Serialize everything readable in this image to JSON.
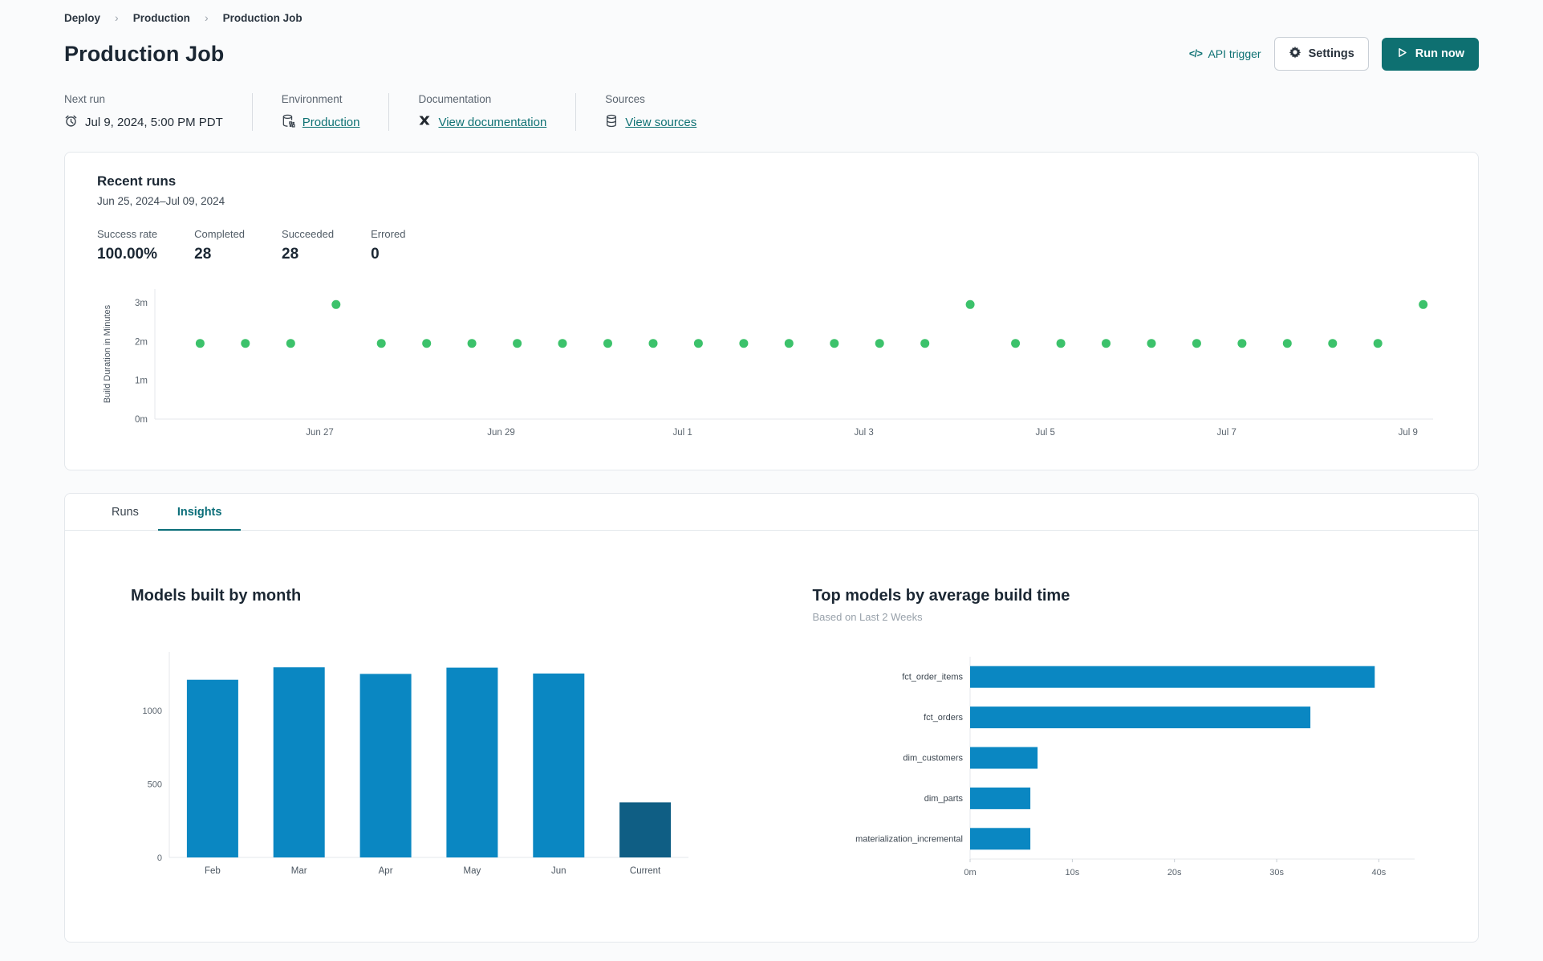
{
  "breadcrumb": {
    "items": [
      "Deploy",
      "Production",
      "Production Job"
    ]
  },
  "header": {
    "title": "Production Job",
    "api_trigger_icon": "</>",
    "api_trigger_label": "API trigger",
    "settings_label": "Settings",
    "run_now_label": "Run now"
  },
  "meta": {
    "next_run": {
      "label": "Next run",
      "value": "Jul 9, 2024, 5:00 PM PDT"
    },
    "environment": {
      "label": "Environment",
      "value": "Production"
    },
    "documentation": {
      "label": "Documentation",
      "value": "View documentation"
    },
    "sources": {
      "label": "Sources",
      "value": "View sources"
    }
  },
  "recent_runs": {
    "title": "Recent runs",
    "date_range": "Jun 25, 2024–Jul 09, 2024",
    "stats": [
      {
        "label": "Success rate",
        "value": "100.00%"
      },
      {
        "label": "Completed",
        "value": "28"
      },
      {
        "label": "Succeeded",
        "value": "28"
      },
      {
        "label": "Errored",
        "value": "0"
      }
    ]
  },
  "tabs": [
    {
      "label": "Runs",
      "active": false
    },
    {
      "label": "Insights",
      "active": true
    }
  ],
  "colors": {
    "accent_teal": "#0e7071",
    "link_teal": "#0e7173",
    "tab_teal": "#0b6e79",
    "dot_green": "#3cc26b",
    "bar_blue": "#0a87c2",
    "bar_dark_blue": "#0f5e84",
    "card_border": "#e4e8ec"
  },
  "chart_data": [
    {
      "type": "scatter",
      "ylabel": "Build Duration in Minutes",
      "ylim": [
        0,
        3.35
      ],
      "yticks": [
        {
          "v": 0,
          "label": "0m"
        },
        {
          "v": 1,
          "label": "1m"
        },
        {
          "v": 2,
          "label": "2m"
        },
        {
          "v": 3,
          "label": "3m"
        }
      ],
      "xticks": [
        "Jun 27",
        "Jun 29",
        "Jul 1",
        "Jul 3",
        "Jul 5",
        "Jul 7",
        "Jul 9"
      ],
      "xtick_start_frac": 0.129,
      "xtick_step_frac": 0.1419,
      "point_start_frac": 0.0354,
      "point_step_frac": 0.03544,
      "point_color": "#3cc26b",
      "values": [
        1.95,
        1.95,
        1.95,
        2.95,
        1.95,
        1.95,
        1.95,
        1.95,
        1.95,
        1.95,
        1.95,
        1.95,
        1.95,
        1.95,
        1.95,
        1.95,
        1.95,
        2.95,
        1.95,
        1.95,
        1.95,
        1.95,
        1.95,
        1.95,
        1.95,
        1.95,
        1.95,
        2.95
      ],
      "grid": false,
      "legend": "none"
    },
    {
      "type": "bar",
      "title": "Models built by month",
      "categories": [
        "Feb",
        "Mar",
        "Apr",
        "May",
        "Jun",
        "Current"
      ],
      "values": [
        1210,
        1295,
        1250,
        1293,
        1253,
        375
      ],
      "yticks": [
        {
          "v": 0,
          "label": "0"
        },
        {
          "v": 500,
          "label": "500"
        },
        {
          "v": 1000,
          "label": "1000"
        }
      ],
      "ylim": [
        0,
        1400
      ],
      "bar_color": "#0a87c2",
      "highlight_color": "#0f5e84",
      "grid": false,
      "legend": "none"
    },
    {
      "type": "bar-horizontal",
      "title": "Top models by average build time",
      "subtitle": "Based on Last 2 Weeks",
      "categories": [
        "fct_order_items",
        "fct_orders",
        "dim_customers",
        "dim_parts",
        "materialization_incremental"
      ],
      "values": [
        39.6,
        33.3,
        6.6,
        5.9,
        5.9
      ],
      "xticks": [
        {
          "v": 0,
          "label": "0m"
        },
        {
          "v": 10,
          "label": "10s"
        },
        {
          "v": 20,
          "label": "20s"
        },
        {
          "v": 30,
          "label": "30s"
        },
        {
          "v": 40,
          "label": "40s"
        }
      ],
      "xlim": [
        0,
        43.5
      ],
      "bar_color": "#0a87c2",
      "grid": false,
      "legend": "none"
    }
  ]
}
